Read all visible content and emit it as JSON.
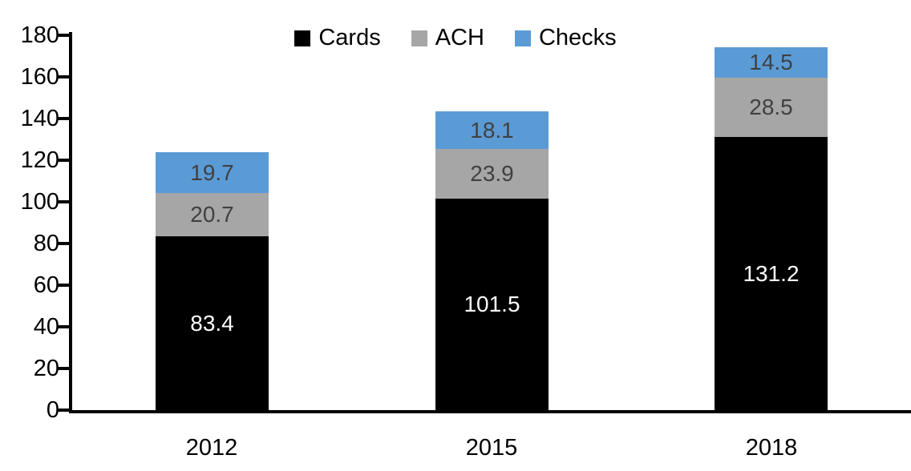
{
  "chart_data": {
    "type": "bar",
    "stacked": true,
    "title": "",
    "xlabel": "",
    "ylabel": "",
    "categories": [
      "2012",
      "2015",
      "2018"
    ],
    "series": [
      {
        "name": "Cards",
        "color": "#000000",
        "label_color": "#ffffff",
        "values": [
          83.4,
          101.5,
          131.2
        ]
      },
      {
        "name": "ACH",
        "color": "#a6a6a6",
        "label_color": "#404040",
        "values": [
          20.7,
          23.9,
          28.5
        ]
      },
      {
        "name": "Checks",
        "color": "#5b9bd5",
        "label_color": "#404040",
        "values": [
          19.7,
          18.1,
          14.5
        ]
      }
    ],
    "segment_labels": {
      "Cards": [
        "83.4",
        "101.5",
        "131.2"
      ],
      "ACH": [
        "20.7",
        "23.9",
        "28.5"
      ],
      "Checks": [
        "19.7",
        "18.1",
        "14.5"
      ]
    },
    "ylim": [
      0,
      180
    ],
    "ytick_step": 20,
    "ytick_labels": [
      "0",
      "20",
      "40",
      "60",
      "80",
      "100",
      "120",
      "140",
      "160",
      "180"
    ],
    "legend_position": "top-center",
    "grid": false,
    "axis_color": "#000000",
    "background_color": "#ffffff"
  }
}
